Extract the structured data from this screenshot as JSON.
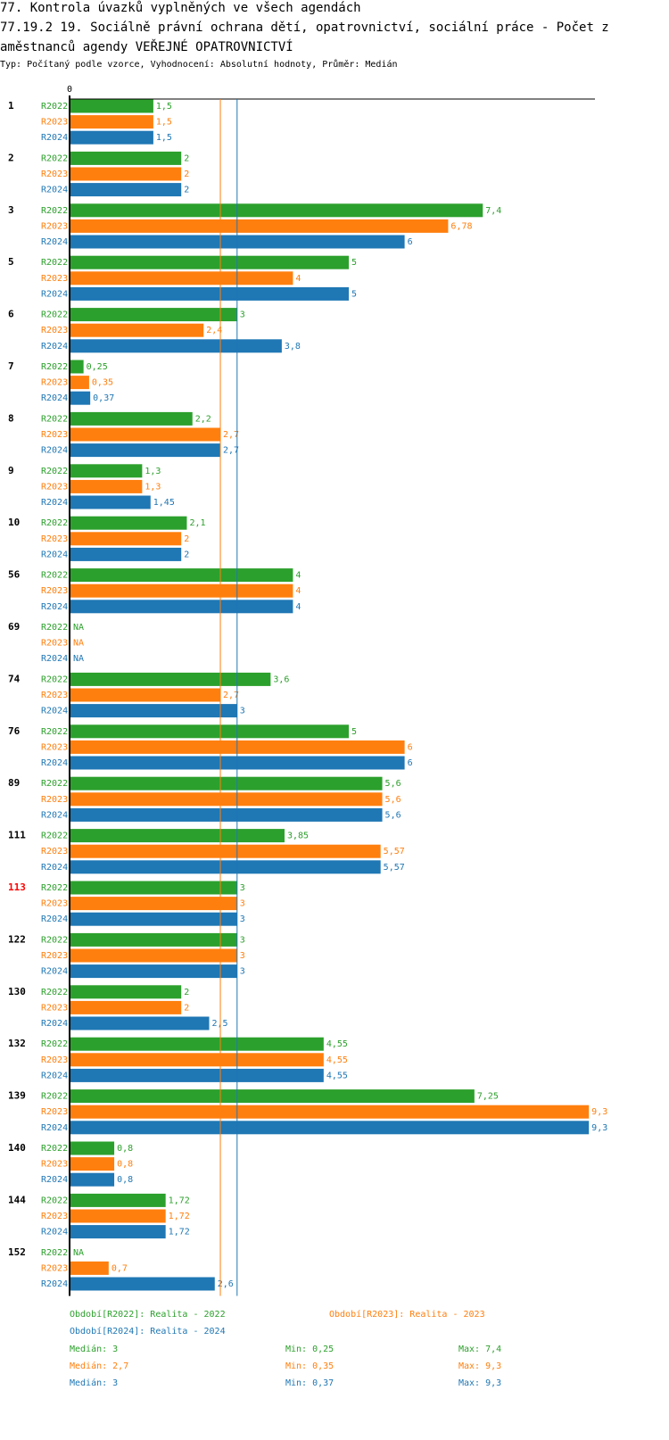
{
  "header": {
    "title_line1": "77. Kontrola úvazků vyplněných ve všech agendách",
    "title_line2": "77.19.2 19. Sociálně právní ochrana dětí, opatrovnictví, sociální práce - Počet z",
    "title_line3": "aměstnanců agendy VEŘEJNÉ OPATROVNICTVÍ",
    "subtitle": "Typ: Počítaný podle vzorce, Vyhodnocení: Absolutní hodnoty, Průměr: Medián"
  },
  "colors": {
    "R2022": "#2ca02c",
    "R2023": "#ff7f0e",
    "R2024": "#1f77b4",
    "highlight": "#ff0000",
    "text": "#000000"
  },
  "chart_data": {
    "type": "bar",
    "orientation": "horizontal",
    "axis_tick_label": "0",
    "xlim": [
      0,
      9.8
    ],
    "series_names": [
      "R2022",
      "R2023",
      "R2024"
    ],
    "highlight_category": "113",
    "na_label": "NA",
    "categories": [
      {
        "label": "1",
        "values": [
          "1,5",
          "1,5",
          "1,5"
        ]
      },
      {
        "label": "2",
        "values": [
          "2",
          "2",
          "2"
        ]
      },
      {
        "label": "3",
        "values": [
          "7,4",
          "6,78",
          "6"
        ]
      },
      {
        "label": "5",
        "values": [
          "5",
          "4",
          "5"
        ]
      },
      {
        "label": "6",
        "values": [
          "3",
          "2,4",
          "3,8"
        ]
      },
      {
        "label": "7",
        "values": [
          "0,25",
          "0,35",
          "0,37"
        ]
      },
      {
        "label": "8",
        "values": [
          "2,2",
          "2,7",
          "2,7"
        ]
      },
      {
        "label": "9",
        "values": [
          "1,3",
          "1,3",
          "1,45"
        ]
      },
      {
        "label": "10",
        "values": [
          "2,1",
          "2",
          "2"
        ]
      },
      {
        "label": "56",
        "values": [
          "4",
          "4",
          "4"
        ]
      },
      {
        "label": "69",
        "values": [
          "NA",
          "NA",
          "NA"
        ]
      },
      {
        "label": "74",
        "values": [
          "3,6",
          "2,7",
          "3"
        ]
      },
      {
        "label": "76",
        "values": [
          "5",
          "6",
          "6"
        ]
      },
      {
        "label": "89",
        "values": [
          "5,6",
          "5,6",
          "5,6"
        ]
      },
      {
        "label": "111",
        "values": [
          "3,85",
          "5,57",
          "5,57"
        ]
      },
      {
        "label": "113",
        "values": [
          "3",
          "3",
          "3"
        ]
      },
      {
        "label": "122",
        "values": [
          "3",
          "3",
          "3"
        ]
      },
      {
        "label": "130",
        "values": [
          "2",
          "2",
          "2,5"
        ]
      },
      {
        "label": "132",
        "values": [
          "4,55",
          "4,55",
          "4,55"
        ]
      },
      {
        "label": "139",
        "values": [
          "7,25",
          "9,3",
          "9,3"
        ]
      },
      {
        "label": "140",
        "values": [
          "0,8",
          "0,8",
          "0,8"
        ]
      },
      {
        "label": "144",
        "values": [
          "1,72",
          "1,72",
          "1,72"
        ]
      },
      {
        "label": "152",
        "values": [
          "NA",
          "0,7",
          "2,6"
        ]
      }
    ],
    "reference_lines": [
      {
        "series": "R2023",
        "value": 2.7
      },
      {
        "series": "R2024",
        "value": 3
      }
    ],
    "legend": [
      {
        "series": "R2022",
        "text": "Období[R2022]: Realita - 2022"
      },
      {
        "series": "R2023",
        "text": "Období[R2023]: Realita - 2023"
      },
      {
        "series": "R2024",
        "text": "Období[R2024]: Realita - 2024"
      }
    ],
    "stats": [
      {
        "series": "R2022",
        "median": "Medián: 3",
        "min": "Min: 0,25",
        "max": "Max: 7,4"
      },
      {
        "series": "R2023",
        "median": "Medián: 2,7",
        "min": "Min: 0,35",
        "max": "Max: 9,3"
      },
      {
        "series": "R2024",
        "median": "Medián: 3",
        "min": "Min: 0,37",
        "max": "Max: 9,3"
      }
    ]
  }
}
